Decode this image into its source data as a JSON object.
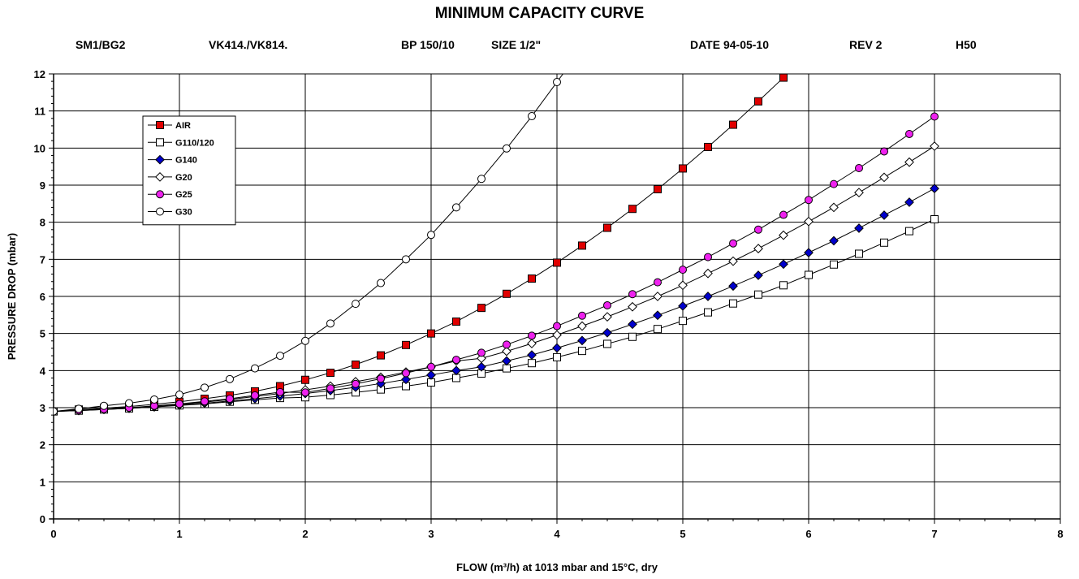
{
  "chart_data": {
    "type": "line",
    "title": "MINIMUM CAPACITY CURVE",
    "header": {
      "model": "SM1/BG2",
      "valve": "VK414./VK814.",
      "bp": "BP 150/10",
      "size": "SIZE 1/2\"",
      "date": "DATE 94-05-10",
      "rev": "REV 2",
      "code": "H50"
    },
    "xlabel": "FLOW  (m³/h) at 1013 mbar and 15°C, dry",
    "ylabel": "PRESSURE DROP  (mbar)",
    "xlim": [
      0,
      8
    ],
    "ylim": [
      0,
      12
    ],
    "xticks": [
      "0",
      "1",
      "2",
      "3",
      "4",
      "5",
      "6",
      "7",
      "8"
    ],
    "yticks": [
      "0",
      "1",
      "2",
      "3",
      "4",
      "5",
      "6",
      "7",
      "8",
      "9",
      "10",
      "11",
      "12"
    ],
    "grid": true,
    "legend_position": "top-left",
    "series": [
      {
        "name": "AIR",
        "marker": "square",
        "fill": "#e00000",
        "stroke": "#000000",
        "x": [
          0,
          0.2,
          0.4,
          0.6,
          0.8,
          1.0,
          1.2,
          1.4,
          1.6,
          1.8,
          2.0,
          2.2,
          2.4,
          2.6,
          2.8,
          3.0,
          3.2,
          3.4,
          3.6,
          3.8,
          4.0,
          4.2,
          4.4,
          4.6,
          4.8,
          5.0,
          5.2,
          5.4,
          5.6,
          5.8
        ],
        "y": [
          2.9,
          2.95,
          2.99,
          3.03,
          3.09,
          3.16,
          3.24,
          3.33,
          3.44,
          3.58,
          3.75,
          3.94,
          4.16,
          4.41,
          4.69,
          5.0,
          5.32,
          5.69,
          6.07,
          6.48,
          6.91,
          7.37,
          7.85,
          8.36,
          8.89,
          9.45,
          10.03,
          10.63,
          11.26,
          11.9
        ]
      },
      {
        "name": "G110/120",
        "marker": "square",
        "fill": "#ffffff",
        "stroke": "#000000",
        "x": [
          0,
          0.2,
          0.4,
          0.6,
          0.8,
          1.0,
          1.2,
          1.4,
          1.6,
          1.8,
          2.0,
          2.2,
          2.4,
          2.6,
          2.8,
          3.0,
          3.2,
          3.4,
          3.6,
          3.8,
          4.0,
          4.2,
          4.4,
          4.6,
          4.8,
          5.0,
          5.2,
          5.4,
          5.6,
          5.8,
          6.0,
          6.2,
          6.4,
          6.6,
          6.8,
          7.0
        ],
        "y": [
          2.9,
          2.92,
          2.95,
          2.98,
          3.02,
          3.06,
          3.1,
          3.16,
          3.21,
          3.26,
          3.28,
          3.34,
          3.41,
          3.49,
          3.58,
          3.68,
          3.8,
          3.92,
          4.06,
          4.2,
          4.36,
          4.53,
          4.72,
          4.91,
          5.12,
          5.34,
          5.57,
          5.81,
          6.05,
          6.3,
          6.58,
          6.86,
          7.15,
          7.45,
          7.76,
          8.08
        ]
      },
      {
        "name": "G140",
        "marker": "diamond",
        "fill": "#0000cc",
        "stroke": "#000000",
        "x": [
          0,
          0.2,
          0.4,
          0.6,
          0.8,
          1.0,
          1.2,
          1.4,
          1.6,
          1.8,
          2.0,
          2.2,
          2.4,
          2.6,
          2.8,
          3.0,
          3.2,
          3.4,
          3.6,
          3.8,
          4.0,
          4.2,
          4.4,
          4.6,
          4.8,
          5.0,
          5.2,
          5.4,
          5.6,
          5.8,
          6.0,
          6.2,
          6.4,
          6.6,
          6.8,
          7.0
        ],
        "y": [
          2.9,
          2.92,
          2.95,
          2.98,
          3.02,
          3.07,
          3.12,
          3.18,
          3.24,
          3.31,
          3.38,
          3.46,
          3.55,
          3.65,
          3.76,
          3.88,
          4.0,
          4.1,
          4.26,
          4.42,
          4.61,
          4.81,
          5.02,
          5.25,
          5.49,
          5.74,
          6.0,
          6.28,
          6.57,
          6.87,
          7.18,
          7.5,
          7.84,
          8.19,
          8.54,
          8.91
        ]
      },
      {
        "name": "G20",
        "marker": "diamond",
        "fill": "#ffffff",
        "stroke": "#000000",
        "x": [
          0,
          0.2,
          0.4,
          0.6,
          0.8,
          1.0,
          1.2,
          1.4,
          1.6,
          1.8,
          2.0,
          2.2,
          2.4,
          2.6,
          2.8,
          3.0,
          3.2,
          3.4,
          3.6,
          3.8,
          4.0,
          4.2,
          4.4,
          4.6,
          4.8,
          5.0,
          5.2,
          5.4,
          5.6,
          5.8,
          6.0,
          6.2,
          6.4,
          6.6,
          6.8,
          7.0
        ],
        "y": [
          2.9,
          2.93,
          2.96,
          2.99,
          3.04,
          3.09,
          3.15,
          3.22,
          3.3,
          3.38,
          3.48,
          3.58,
          3.7,
          3.82,
          3.96,
          4.1,
          4.26,
          4.33,
          4.52,
          4.73,
          4.96,
          5.2,
          5.45,
          5.72,
          6.0,
          6.3,
          6.62,
          6.95,
          7.29,
          7.65,
          8.02,
          8.4,
          8.8,
          9.21,
          9.62,
          10.05
        ]
      },
      {
        "name": "G25",
        "marker": "circle",
        "fill": "#ee22ee",
        "stroke": "#000000",
        "x": [
          0,
          0.2,
          0.4,
          0.6,
          0.8,
          1.0,
          1.2,
          1.4,
          1.6,
          1.8,
          2.0,
          2.2,
          2.4,
          2.6,
          2.8,
          3.0,
          3.2,
          3.4,
          3.6,
          3.8,
          4.0,
          4.2,
          4.4,
          4.6,
          4.8,
          5.0,
          5.2,
          5.4,
          5.6,
          5.8,
          6.0,
          6.2,
          6.4,
          6.6,
          6.8,
          7.0
        ],
        "y": [
          2.9,
          2.93,
          2.96,
          3.0,
          3.05,
          3.1,
          3.17,
          3.24,
          3.33,
          3.42,
          3.41,
          3.52,
          3.64,
          3.78,
          3.93,
          4.1,
          4.29,
          4.48,
          4.7,
          4.94,
          5.2,
          5.48,
          5.76,
          6.06,
          6.38,
          6.72,
          7.06,
          7.43,
          7.8,
          8.2,
          8.6,
          9.03,
          9.46,
          9.91,
          10.38,
          10.85
        ]
      },
      {
        "name": "G30",
        "marker": "circle",
        "fill": "#ffffff",
        "stroke": "#000000",
        "x": [
          0,
          0.2,
          0.4,
          0.6,
          0.8,
          1.0,
          1.2,
          1.4,
          1.6,
          1.8,
          2.0,
          2.2,
          2.4,
          2.6,
          2.8,
          3.0,
          3.2,
          3.4,
          3.6,
          3.8,
          4.0
        ],
        "y": [
          2.9,
          2.97,
          3.05,
          3.12,
          3.22,
          3.35,
          3.54,
          3.77,
          4.06,
          4.4,
          4.8,
          5.27,
          5.8,
          6.36,
          7.0,
          7.66,
          8.4,
          9.17,
          9.99,
          10.86,
          11.78
        ]
      }
    ]
  }
}
